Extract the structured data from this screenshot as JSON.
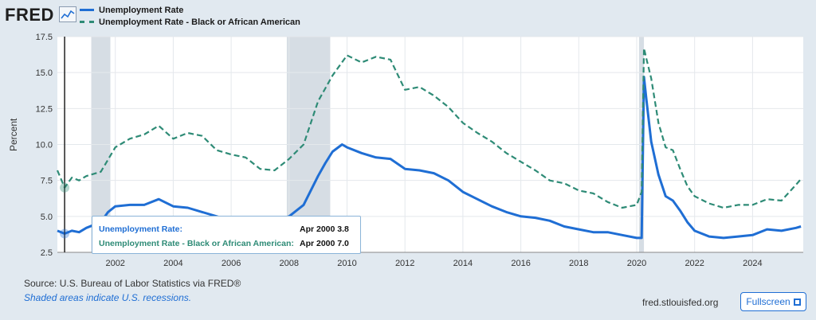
{
  "brand": {
    "logo_text": "FRED",
    "logo_icon": "chart-line-icon"
  },
  "footer": {
    "source": "Source: U.S. Bureau of Labor Statistics via FRED®",
    "note": "Shaded areas indicate U.S. recessions.",
    "url": "fred.stlouisfed.org",
    "fullscreen_label": "Fullscreen",
    "fullscreen_icon": "expand-icon"
  },
  "tooltip": {
    "row1_label": "Unemployment Rate:",
    "row1_value": "Apr 2000 3.8",
    "row2_label": "Unemployment Rate - Black or African American:",
    "row2_value": "Apr 2000 7.0"
  },
  "colors": {
    "series1": "#1f6ed4",
    "series2": "#2e8b76",
    "recession": "#d6dde4",
    "grid": "#e4e8ec"
  },
  "chart_data": {
    "type": "line",
    "title": "",
    "xlabel": "",
    "ylabel": "Percent",
    "ylim": [
      2.5,
      17.5
    ],
    "yticks": [
      "2.5",
      "5.0",
      "7.5",
      "10.0",
      "12.5",
      "15.0",
      "17.5"
    ],
    "xlim": [
      2000.0,
      2025.75
    ],
    "xticks": [
      "2002",
      "2004",
      "2006",
      "2008",
      "2010",
      "2012",
      "2014",
      "2016",
      "2018",
      "2020",
      "2022",
      "2024"
    ],
    "grid": true,
    "legend_position": "top-left",
    "recessions": [
      [
        2001.17,
        2001.83
      ],
      [
        2007.92,
        2009.42
      ],
      [
        2020.08,
        2020.25
      ]
    ],
    "highlight_x": 2000.25,
    "series": [
      {
        "name": "Unemployment Rate",
        "style": "solid",
        "x": [
          2000.0,
          2000.25,
          2000.5,
          2000.75,
          2001.0,
          2001.25,
          2001.5,
          2001.75,
          2002.0,
          2002.5,
          2003.0,
          2003.5,
          2004.0,
          2004.5,
          2005.0,
          2005.5,
          2006.0,
          2006.5,
          2007.0,
          2007.5,
          2008.0,
          2008.5,
          2009.0,
          2009.25,
          2009.5,
          2009.83,
          2010.0,
          2010.5,
          2011.0,
          2011.5,
          2012.0,
          2012.5,
          2013.0,
          2013.5,
          2014.0,
          2014.5,
          2015.0,
          2015.5,
          2016.0,
          2016.5,
          2017.0,
          2017.5,
          2018.0,
          2018.5,
          2019.0,
          2019.5,
          2020.0,
          2020.17,
          2020.25,
          2020.33,
          2020.5,
          2020.75,
          2021.0,
          2021.25,
          2021.5,
          2021.75,
          2022.0,
          2022.5,
          2023.0,
          2023.5,
          2024.0,
          2024.5,
          2025.0,
          2025.5,
          2025.67
        ],
        "y": [
          4.0,
          3.8,
          4.0,
          3.9,
          4.2,
          4.4,
          4.6,
          5.3,
          5.7,
          5.8,
          5.8,
          6.2,
          5.7,
          5.6,
          5.3,
          5.0,
          4.7,
          4.6,
          4.6,
          4.7,
          5.0,
          5.8,
          7.8,
          8.7,
          9.5,
          10.0,
          9.8,
          9.4,
          9.1,
          9.0,
          8.3,
          8.2,
          8.0,
          7.5,
          6.7,
          6.2,
          5.7,
          5.3,
          5.0,
          4.9,
          4.7,
          4.3,
          4.1,
          3.9,
          3.9,
          3.7,
          3.5,
          3.5,
          14.7,
          13.2,
          10.2,
          7.9,
          6.4,
          6.1,
          5.4,
          4.6,
          4.0,
          3.6,
          3.5,
          3.6,
          3.7,
          4.1,
          4.0,
          4.2,
          4.3
        ]
      },
      {
        "name": "Unemployment Rate - Black or African American",
        "style": "dashed",
        "x": [
          2000.0,
          2000.25,
          2000.5,
          2000.75,
          2001.0,
          2001.5,
          2002.0,
          2002.5,
          2003.0,
          2003.5,
          2004.0,
          2004.5,
          2005.0,
          2005.5,
          2006.0,
          2006.5,
          2007.0,
          2007.5,
          2008.0,
          2008.5,
          2009.0,
          2009.5,
          2010.0,
          2010.5,
          2011.0,
          2011.5,
          2012.0,
          2012.5,
          2013.0,
          2013.5,
          2014.0,
          2014.5,
          2015.0,
          2015.5,
          2016.0,
          2016.5,
          2017.0,
          2017.5,
          2018.0,
          2018.5,
          2019.0,
          2019.5,
          2020.0,
          2020.17,
          2020.25,
          2020.33,
          2020.5,
          2020.75,
          2021.0,
          2021.25,
          2021.5,
          2021.75,
          2022.0,
          2022.5,
          2023.0,
          2023.5,
          2024.0,
          2024.5,
          2025.0,
          2025.5,
          2025.67
        ],
        "y": [
          8.2,
          7.0,
          7.7,
          7.5,
          7.8,
          8.1,
          9.8,
          10.4,
          10.7,
          11.3,
          10.4,
          10.8,
          10.6,
          9.6,
          9.3,
          9.1,
          8.3,
          8.2,
          9.0,
          10.0,
          13.0,
          14.8,
          16.2,
          15.7,
          16.1,
          15.9,
          13.8,
          14.0,
          13.4,
          12.6,
          11.5,
          10.8,
          10.2,
          9.4,
          8.8,
          8.2,
          7.5,
          7.3,
          6.8,
          6.6,
          6.0,
          5.6,
          5.8,
          6.7,
          16.7,
          16.0,
          14.6,
          11.5,
          9.8,
          9.6,
          8.3,
          7.1,
          6.4,
          5.9,
          5.6,
          5.8,
          5.8,
          6.2,
          6.1,
          7.2,
          7.6
        ]
      }
    ]
  }
}
